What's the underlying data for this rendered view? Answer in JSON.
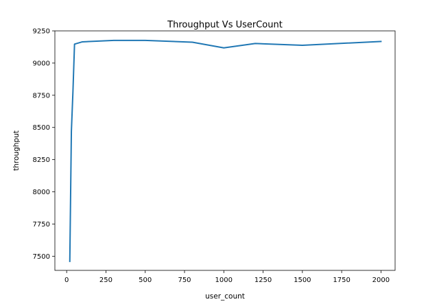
{
  "chart_data": {
    "type": "line",
    "title": "Throughput Vs UserCount",
    "xlabel": "user_count",
    "ylabel": "throughput",
    "xlim": [
      -75,
      2090
    ],
    "ylim": [
      7390,
      9250
    ],
    "xticks": [
      0,
      250,
      500,
      750,
      1000,
      1250,
      1500,
      1750,
      2000
    ],
    "yticks": [
      7500,
      7750,
      8000,
      8250,
      8500,
      8750,
      9000,
      9250
    ],
    "grid": false,
    "legend": "none",
    "series": [
      {
        "color": "#1f77b4",
        "x": [
          20,
          30,
          40,
          50,
          100,
          300,
          500,
          800,
          1000,
          1200,
          1500,
          2000
        ],
        "y": [
          7460,
          8470,
          8780,
          9147,
          9165,
          9176,
          9176,
          9162,
          9118,
          9152,
          9138,
          9168
        ]
      }
    ]
  }
}
